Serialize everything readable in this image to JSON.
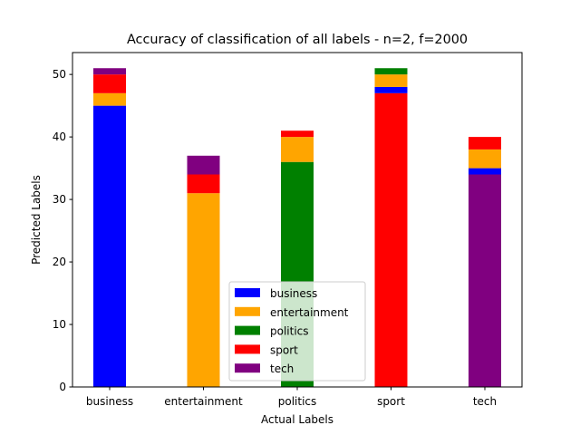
{
  "chart_data": {
    "type": "bar",
    "stacked": true,
    "title": "Accuracy of classification of all labels - n=2, f=2000",
    "xlabel": "Actual Labels",
    "ylabel": "Predicted Labels",
    "categories": [
      "business",
      "entertainment",
      "politics",
      "sport",
      "tech"
    ],
    "ylim": [
      0,
      53.5
    ],
    "yticks": [
      0,
      10,
      20,
      30,
      40,
      50
    ],
    "grid": false,
    "legend_position": "lower-center",
    "series": [
      {
        "name": "business",
        "color": "#0000ff",
        "values": [
          45,
          0,
          0,
          1,
          1
        ]
      },
      {
        "name": "entertainment",
        "color": "#ffa500",
        "values": [
          2,
          31,
          4,
          2,
          3
        ]
      },
      {
        "name": "politics",
        "color": "#008000",
        "values": [
          0,
          0,
          36,
          1,
          0
        ]
      },
      {
        "name": "sport",
        "color": "#ff0000",
        "values": [
          3,
          3,
          1,
          47,
          2
        ]
      },
      {
        "name": "tech",
        "color": "#800080",
        "values": [
          1,
          3,
          0,
          0,
          34
        ]
      }
    ],
    "stack_order": [
      "business",
      "entertainment",
      "politics",
      "sport",
      "tech"
    ],
    "diagonal_first": true
  }
}
